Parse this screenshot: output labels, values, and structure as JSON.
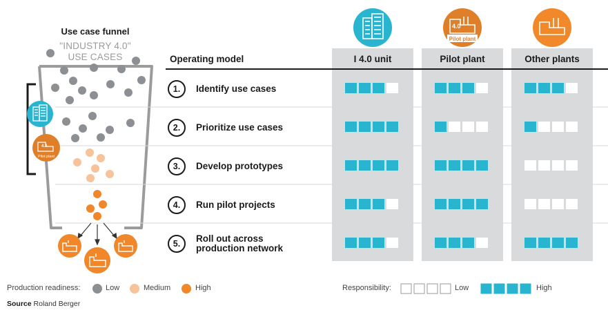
{
  "funnel": {
    "title": "Use case funnel",
    "subtitle_line1": "\"INDUSTRY 4.0\"",
    "subtitle_line2": "USE CASES",
    "unit_badge_icon": "building-icon",
    "pilot_badge_icon": "factory-icon",
    "pilot_badge_label": "4.0",
    "pilot_badge_caption": "Pilot plant"
  },
  "operating_model": {
    "title": "Operating model",
    "columns": [
      {
        "label": "I 4.0 unit",
        "icon": "building-icon",
        "color": "#29b4cf"
      },
      {
        "label": "Pilot plant",
        "icon": "factory-icon",
        "color": "#e07f2a",
        "badge_number": "4.0",
        "badge_caption": "Pilot plant"
      },
      {
        "label": "Other plants",
        "icon": "factory-icon",
        "color": "#f1892a"
      }
    ],
    "steps": [
      {
        "number": "1.",
        "label": "Identify use cases",
        "responsibility": [
          3,
          3,
          3
        ]
      },
      {
        "number": "2.",
        "label": "Prioritize use cases",
        "responsibility": [
          4,
          1,
          1
        ]
      },
      {
        "number": "3.",
        "label": "Develop prototypes",
        "responsibility": [
          4,
          4,
          0
        ]
      },
      {
        "number": "4.",
        "label": "Run pilot projects",
        "responsibility": [
          3,
          4,
          0
        ]
      },
      {
        "number": "5.",
        "label_line1": "Roll out across",
        "label_line2": "production network",
        "responsibility": [
          3,
          3,
          4
        ]
      }
    ]
  },
  "legend": {
    "readiness_label": "Production readiness:",
    "low": "Low",
    "medium": "Medium",
    "high": "High",
    "responsibility_label": "Responsibility:",
    "resp_low": "Low",
    "resp_high": "High"
  },
  "source": {
    "prefix": "Source",
    "text": "Roland Berger"
  },
  "colors": {
    "gray_dot": "#8c8f93",
    "medium_dot": "#f7c39b",
    "high_dot": "#f0872b",
    "teal": "#29b4cf",
    "panel": "#d9dadc",
    "funnel_line": "#9b9b9b"
  }
}
